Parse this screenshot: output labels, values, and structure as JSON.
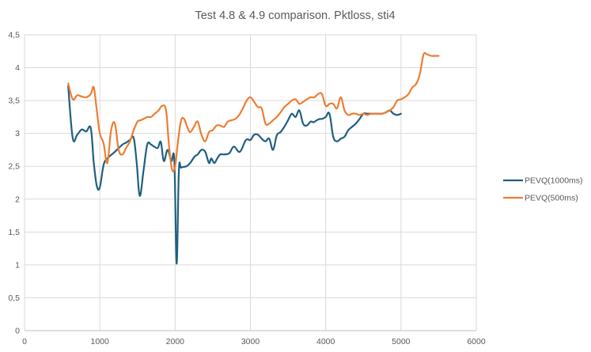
{
  "chart_data": {
    "type": "line",
    "title": "Test 4.8 & 4.9 comparison. Pktloss, sti4",
    "xlabel": "",
    "ylabel": "",
    "xlim": [
      0,
      6000
    ],
    "ylim": [
      0,
      4.5
    ],
    "x_ticks": [
      0,
      1000,
      2000,
      3000,
      4000,
      5000,
      6000
    ],
    "x_tick_labels": [
      "0",
      "1000",
      "2000",
      "3000",
      "4000",
      "5000",
      "6000"
    ],
    "y_ticks": [
      0,
      0.5,
      1,
      1.5,
      2,
      2.5,
      3,
      3.5,
      4,
      4.5
    ],
    "y_tick_labels": [
      "0",
      "0,5",
      "1",
      "1,5",
      "2",
      "2,5",
      "3",
      "3,5",
      "4",
      "4,5"
    ],
    "grid": "vertical and horizontal",
    "legend_position": "right",
    "series": [
      {
        "name": "PEVQ(1000ms)",
        "color": "#1f5f7f",
        "x": [
          580,
          640,
          700,
          760,
          820,
          880,
          920,
          960,
          1000,
          1050,
          1100,
          1200,
          1300,
          1350,
          1400,
          1450,
          1490,
          1530,
          1580,
          1630,
          1680,
          1720,
          1770,
          1810,
          1850,
          1900,
          1950,
          1990,
          2020,
          2050,
          2080,
          2150,
          2200,
          2260,
          2300,
          2350,
          2400,
          2450,
          2480,
          2520,
          2560,
          2600,
          2650,
          2720,
          2780,
          2860,
          2940,
          3000,
          3050,
          3100,
          3150,
          3200,
          3250,
          3300,
          3350,
          3400,
          3450,
          3500,
          3550,
          3600,
          3650,
          3700,
          3750,
          3800,
          3840,
          3880,
          3920,
          3950,
          4000,
          4050,
          4100,
          4150,
          4200,
          4250,
          4300,
          4350,
          4400,
          4450,
          4500,
          4550,
          4600,
          4650,
          4700,
          4750,
          4800,
          4850,
          4900,
          4950,
          5000
        ],
        "y": [
          3.72,
          2.93,
          2.98,
          3.06,
          3.03,
          3.08,
          2.55,
          2.2,
          2.18,
          2.52,
          2.62,
          2.72,
          2.83,
          2.86,
          2.9,
          2.93,
          2.55,
          2.05,
          2.43,
          2.83,
          2.83,
          2.8,
          2.78,
          2.87,
          2.58,
          2.75,
          2.58,
          2.58,
          1.02,
          2.43,
          2.48,
          2.5,
          2.55,
          2.65,
          2.68,
          2.75,
          2.72,
          2.55,
          2.62,
          2.55,
          2.62,
          2.68,
          2.68,
          2.7,
          2.8,
          2.72,
          2.9,
          2.9,
          2.98,
          2.98,
          2.92,
          2.88,
          2.92,
          2.75,
          2.97,
          3.02,
          3.1,
          3.2,
          3.3,
          3.25,
          3.35,
          3.15,
          3.12,
          3.18,
          3.17,
          3.2,
          3.22,
          3.22,
          3.25,
          3.3,
          2.95,
          2.88,
          2.92,
          2.95,
          3.05,
          3.1,
          3.15,
          3.22,
          3.3,
          3.3,
          3.3,
          3.3,
          3.3,
          3.3,
          3.32,
          3.35,
          3.3,
          3.28,
          3.3
        ],
        "x_extra": []
      },
      {
        "name": "PEVQ(500ms)",
        "color": "#ed7d31",
        "x": [
          580,
          640,
          700,
          760,
          820,
          880,
          920,
          960,
          1000,
          1050,
          1100,
          1150,
          1200,
          1250,
          1300,
          1350,
          1400,
          1450,
          1500,
          1540,
          1580,
          1630,
          1680,
          1730,
          1780,
          1830,
          1880,
          1920,
          1960,
          2000,
          2040,
          2080,
          2120,
          2160,
          2200,
          2250,
          2300,
          2350,
          2400,
          2450,
          2500,
          2550,
          2600,
          2650,
          2700,
          2750,
          2800,
          2850,
          2900,
          2950,
          3000,
          3050,
          3100,
          3150,
          3200,
          3250,
          3300,
          3350,
          3400,
          3450,
          3500,
          3550,
          3600,
          3650,
          3700,
          3750,
          3800,
          3850,
          3900,
          3950,
          4000,
          4050,
          4100,
          4150,
          4200,
          4250,
          4300,
          4350,
          4400,
          4450,
          4500,
          4550,
          4600,
          4650,
          4700,
          4750,
          4800,
          4850,
          4900,
          4950,
          5000,
          5050,
          5100,
          5150,
          5200,
          5250,
          5300,
          5350,
          5400,
          5450,
          5500
        ],
        "y": [
          3.76,
          3.52,
          3.58,
          3.56,
          3.55,
          3.6,
          3.7,
          3.35,
          3.0,
          2.85,
          2.55,
          3.05,
          3.15,
          2.75,
          2.68,
          2.78,
          2.88,
          3.05,
          3.18,
          3.2,
          3.22,
          3.25,
          3.25,
          3.3,
          3.35,
          3.42,
          3.35,
          2.8,
          2.45,
          2.5,
          2.9,
          3.2,
          3.22,
          3.1,
          3.02,
          3.1,
          3.18,
          2.98,
          2.88,
          3.02,
          3.05,
          3.12,
          3.12,
          3.1,
          3.18,
          3.2,
          3.22,
          3.28,
          3.38,
          3.5,
          3.55,
          3.48,
          3.4,
          3.38,
          3.15,
          3.15,
          3.2,
          3.25,
          3.32,
          3.4,
          3.45,
          3.5,
          3.52,
          3.45,
          3.48,
          3.52,
          3.55,
          3.55,
          3.6,
          3.6,
          3.42,
          3.45,
          3.45,
          3.38,
          3.55,
          3.35,
          3.28,
          3.3,
          3.3,
          3.28,
          3.3,
          3.28,
          3.3,
          3.3,
          3.3,
          3.3,
          3.32,
          3.35,
          3.4,
          3.5,
          3.52,
          3.55,
          3.6,
          3.7,
          3.75,
          3.9,
          4.2,
          4.2,
          4.18,
          4.18,
          4.18
        ]
      }
    ]
  }
}
